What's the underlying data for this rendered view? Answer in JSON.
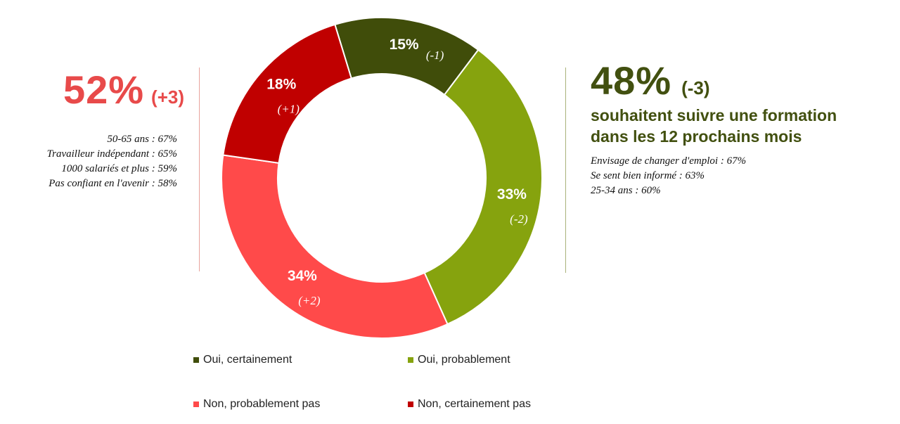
{
  "left": {
    "total": "52%",
    "change": "(+3)",
    "stats": [
      "50-65 ans : 67%",
      "Travailleur indépendant : 65%",
      "1000 salariés et plus : 59%",
      "Pas confiant en l'avenir : 58%"
    ]
  },
  "right": {
    "total": "48%",
    "change": "(-3)",
    "subtitle_line1": "souhaitent suivre une formation",
    "subtitle_line2": "dans les 12 prochains mois",
    "stats": [
      "Envisage de changer d'emploi : 67%",
      "Se sent bien informé : 63%",
      "25-34 ans : 60%"
    ]
  },
  "chart_data": {
    "type": "pie",
    "donut": true,
    "title": "",
    "series": [
      {
        "name": "Oui, certainement",
        "value": 15,
        "label": "15%",
        "change": "(-1)",
        "color": "#404D0A"
      },
      {
        "name": "Oui, probablement",
        "value": 33,
        "label": "33%",
        "change": "(-2)",
        "color": "#86A30E"
      },
      {
        "name": "Non, probablement pas",
        "value": 34,
        "label": "34%",
        "change": "(+2)",
        "color": "#FF4A4A"
      },
      {
        "name": "Non, certainement pas",
        "value": 18,
        "label": "18%",
        "change": "(+1)",
        "color": "#C00000"
      }
    ],
    "legend_position": "bottom"
  }
}
